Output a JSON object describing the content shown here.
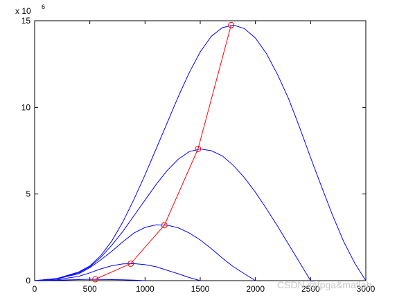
{
  "chart_data": {
    "type": "line",
    "xlim": [
      0,
      3000
    ],
    "ylim": [
      0,
      15
    ],
    "x_ticks": [
      0,
      500,
      1000,
      1500,
      2000,
      2500,
      3000
    ],
    "y_ticks": [
      0,
      5,
      10,
      15
    ],
    "y_exponent_label": "x 10",
    "y_exponent_power": "6",
    "grid": false,
    "series": [
      {
        "color": "#0000ff",
        "x": [
          0,
          200,
          400,
          500,
          600,
          700,
          800,
          900,
          1000
        ],
        "y": [
          0,
          0.03,
          0.06,
          0.08,
          0.07,
          0.06,
          0.05,
          0.03,
          0
        ]
      },
      {
        "color": "#0000ff",
        "x": [
          0,
          200,
          400,
          500,
          600,
          700,
          800,
          900,
          1000,
          1100,
          1200,
          1300,
          1400,
          1500
        ],
        "y": [
          0,
          0.05,
          0.25,
          0.45,
          0.68,
          0.86,
          0.97,
          0.98,
          0.92,
          0.8,
          0.6,
          0.4,
          0.18,
          0
        ]
      },
      {
        "color": "#0000ff",
        "x": [
          0,
          200,
          400,
          500,
          600,
          700,
          800,
          900,
          1000,
          1100,
          1200,
          1300,
          1400,
          1500,
          1600,
          1700,
          1800,
          1900,
          2000
        ],
        "y": [
          0,
          0.1,
          0.4,
          0.75,
          1.2,
          1.7,
          2.25,
          2.75,
          3.07,
          3.22,
          3.2,
          3.05,
          2.75,
          2.35,
          1.85,
          1.3,
          0.8,
          0.4,
          0
        ]
      },
      {
        "color": "#0000ff",
        "x": [
          0,
          200,
          400,
          500,
          600,
          700,
          800,
          900,
          1000,
          1100,
          1200,
          1300,
          1400,
          1500,
          1600,
          1700,
          1800,
          1900,
          2000,
          2100,
          2200,
          2300,
          2400,
          2500
        ],
        "y": [
          0,
          0.12,
          0.45,
          0.8,
          1.35,
          2.05,
          2.85,
          3.75,
          4.65,
          5.55,
          6.35,
          7.0,
          7.45,
          7.6,
          7.5,
          7.2,
          6.65,
          5.95,
          5.1,
          4.15,
          3.15,
          2.1,
          1.05,
          0
        ]
      },
      {
        "color": "#0000ff",
        "x": [
          0,
          200,
          400,
          500,
          600,
          700,
          800,
          900,
          1000,
          1100,
          1200,
          1300,
          1400,
          1500,
          1600,
          1700,
          1800,
          1900,
          2000,
          2100,
          2200,
          2300,
          2400,
          2500,
          2600,
          2700,
          2800,
          2900,
          3000
        ],
        "y": [
          0,
          0.12,
          0.5,
          0.85,
          1.45,
          2.3,
          3.4,
          4.7,
          6.1,
          7.6,
          9.1,
          10.6,
          12.0,
          13.2,
          14.1,
          14.6,
          14.75,
          14.55,
          14.0,
          13.1,
          11.9,
          10.5,
          8.85,
          7.1,
          5.4,
          3.75,
          2.25,
          1.0,
          0
        ]
      },
      {
        "color": "#ff0000",
        "marker": "circle",
        "x": [
          550,
          870,
          1175,
          1480,
          1780
        ],
        "y": [
          0.08,
          0.98,
          3.2,
          7.6,
          14.75
        ]
      }
    ]
  },
  "watermark": "CSDN @fpga&matlab"
}
